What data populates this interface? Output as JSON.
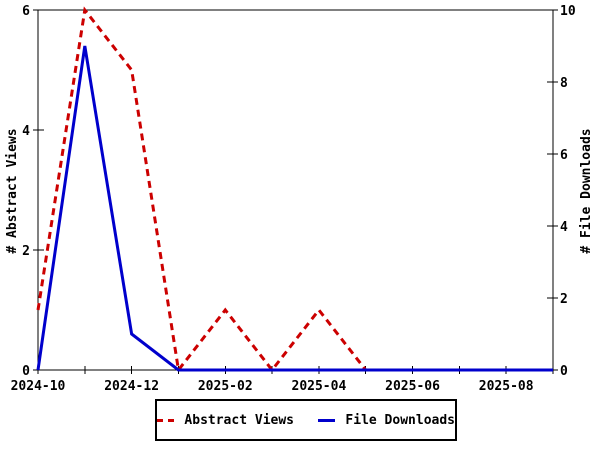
{
  "colors": {
    "abstract_views": "#cc0000",
    "file_downloads": "#0000cc",
    "axis": "#000000",
    "background": "#ffffff"
  },
  "chart_data": {
    "type": "line",
    "x": [
      "2024-10",
      "2024-11",
      "2024-12",
      "2025-01",
      "2025-02",
      "2025-03",
      "2025-04",
      "2025-05",
      "2025-06",
      "2025-07",
      "2025-08",
      "2025-09"
    ],
    "x_labeled_ticks": [
      "2024-10",
      "2024-12",
      "2025-02",
      "2025-04",
      "2025-06",
      "2025-08"
    ],
    "series": [
      {
        "name": "Abstract Views",
        "axis": "left",
        "color": "#cc0000",
        "style": "dashed",
        "values": [
          1,
          6,
          5,
          0,
          1,
          0,
          1,
          0,
          0,
          0,
          0,
          0
        ]
      },
      {
        "name": "File Downloads",
        "axis": "right",
        "color": "#0000cc",
        "style": "solid",
        "values": [
          0,
          9,
          1,
          0,
          0,
          0,
          0,
          0,
          0,
          0,
          0,
          0
        ]
      }
    ],
    "left_axis": {
      "label": "# Abstract Views",
      "ticks": [
        0,
        2,
        4,
        6
      ],
      "range": [
        0,
        6
      ]
    },
    "right_axis": {
      "label": "# File Downloads",
      "ticks": [
        0,
        2,
        4,
        6,
        8,
        10
      ],
      "range": [
        0,
        10
      ]
    },
    "title": "",
    "grid": false,
    "legend_position": "bottom"
  }
}
